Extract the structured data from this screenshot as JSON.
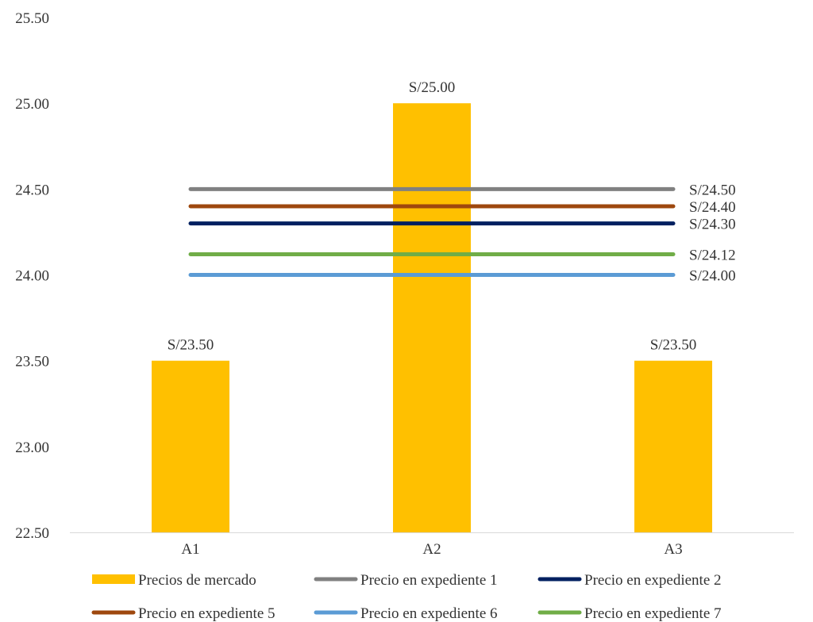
{
  "chart_data": {
    "type": "bar",
    "categories": [
      "A1",
      "A2",
      "A3"
    ],
    "ylim": [
      22.5,
      25.5
    ],
    "yticks": [
      "22.50",
      "23.00",
      "23.50",
      "24.00",
      "24.50",
      "25.00",
      "25.50"
    ],
    "grid": false,
    "legend_position": "bottom",
    "bars": {
      "name": "Precios de mercado",
      "values": [
        23.5,
        25.0,
        23.5
      ],
      "labels": [
        "S/23.50",
        "S/25.00",
        "S/23.50"
      ],
      "color": "#FFC000"
    },
    "reference_lines": [
      {
        "name": "Precio en expediente 1",
        "value": 24.5,
        "label": "S/24.50",
        "color": "#808080"
      },
      {
        "name": "Precio en expediente 2",
        "value": 24.3,
        "label": "S/24.30",
        "color": "#002060"
      },
      {
        "name": "Precio en expediente 5",
        "value": 24.4,
        "label": "S/24.40",
        "color": "#9E480E"
      },
      {
        "name": "Precio en expediente 6",
        "value": 24.0,
        "label": "S/24.00",
        "color": "#5B9BD5"
      },
      {
        "name": "Precio en expediente 7",
        "value": 24.12,
        "label": "S/24.12",
        "color": "#70AD47"
      }
    ]
  }
}
